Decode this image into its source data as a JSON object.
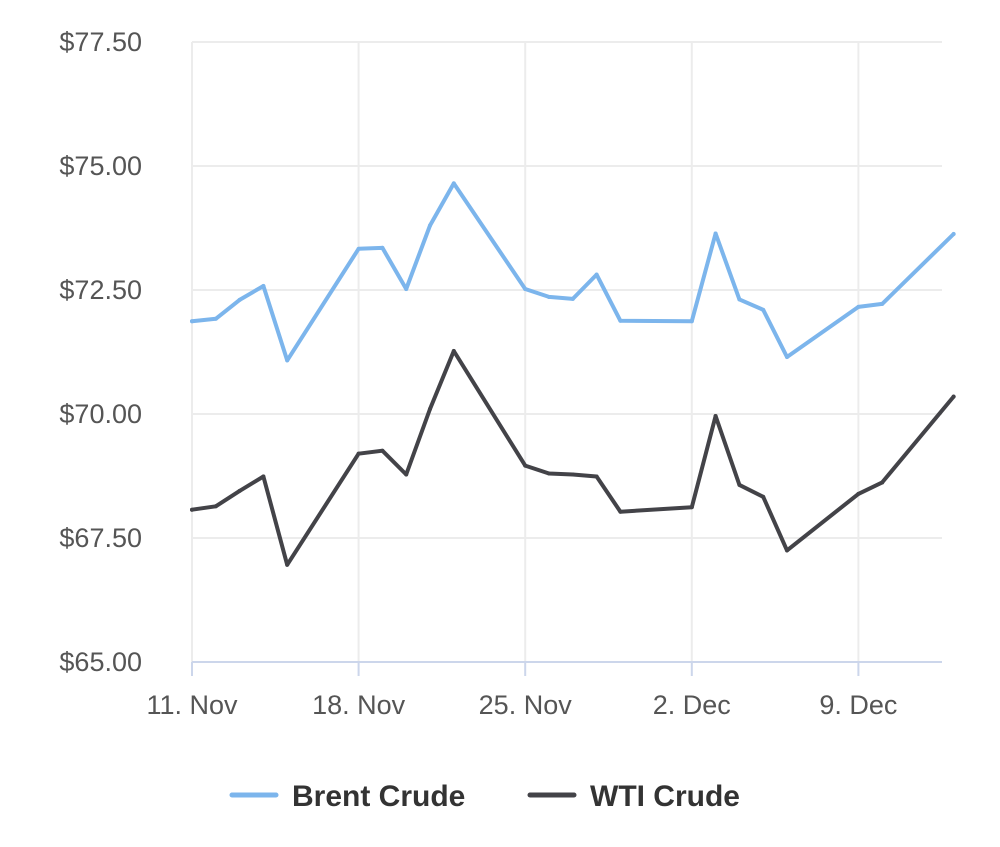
{
  "chart_data": {
    "type": "line",
    "title": "",
    "xlabel": "",
    "ylabel": "",
    "ylim": [
      65,
      77.5
    ],
    "y_ticks": [
      "$65.00",
      "$67.50",
      "$70.00",
      "$72.50",
      "$75.00",
      "$77.50"
    ],
    "y_tick_values": [
      65,
      67.5,
      70,
      72.5,
      75,
      77.5
    ],
    "x_ticks": [
      "11. Nov",
      "18. Nov",
      "25. Nov",
      "2. Dec",
      "9. Dec"
    ],
    "x_tick_dates": [
      "2024-11-11",
      "2024-11-18",
      "2024-11-25",
      "2024-12-02",
      "2024-12-09"
    ],
    "x_range": [
      "2024-11-11",
      "2024-12-14"
    ],
    "grid": true,
    "legend": {
      "placement": "bottom-center"
    },
    "series": [
      {
        "name": "Brent Crude",
        "color": "#7cb5ec",
        "points": [
          [
            "2024-11-11",
            71.87
          ],
          [
            "2024-11-12",
            71.92
          ],
          [
            "2024-11-13",
            72.3
          ],
          [
            "2024-11-14",
            72.58
          ],
          [
            "2024-11-15",
            71.08
          ],
          [
            "2024-11-18",
            73.33
          ],
          [
            "2024-11-19",
            73.35
          ],
          [
            "2024-11-20",
            72.52
          ],
          [
            "2024-11-21",
            73.8
          ],
          [
            "2024-11-22",
            74.65
          ],
          [
            "2024-11-25",
            72.52
          ],
          [
            "2024-11-26",
            72.36
          ],
          [
            "2024-11-27",
            72.32
          ],
          [
            "2024-11-28",
            72.81
          ],
          [
            "2024-11-29",
            71.88
          ],
          [
            "2024-12-02",
            71.87
          ],
          [
            "2024-12-03",
            73.64
          ],
          [
            "2024-12-04",
            72.31
          ],
          [
            "2024-12-05",
            72.1
          ],
          [
            "2024-12-06",
            71.15
          ],
          [
            "2024-12-09",
            72.16
          ],
          [
            "2024-12-10",
            72.22
          ],
          [
            "2024-12-13",
            73.63
          ]
        ]
      },
      {
        "name": "WTI Crude",
        "color": "#434348",
        "points": [
          [
            "2024-11-11",
            68.07
          ],
          [
            "2024-11-12",
            68.14
          ],
          [
            "2024-11-13",
            68.45
          ],
          [
            "2024-11-14",
            68.74
          ],
          [
            "2024-11-15",
            66.96
          ],
          [
            "2024-11-18",
            69.2
          ],
          [
            "2024-11-19",
            69.26
          ],
          [
            "2024-11-20",
            68.78
          ],
          [
            "2024-11-21",
            70.1
          ],
          [
            "2024-11-22",
            71.27
          ],
          [
            "2024-11-25",
            68.96
          ],
          [
            "2024-11-26",
            68.8
          ],
          [
            "2024-11-27",
            68.78
          ],
          [
            "2024-11-28",
            68.74
          ],
          [
            "2024-11-29",
            68.03
          ],
          [
            "2024-12-02",
            68.12
          ],
          [
            "2024-12-03",
            69.96
          ],
          [
            "2024-12-04",
            68.57
          ],
          [
            "2024-12-05",
            68.33
          ],
          [
            "2024-12-06",
            67.25
          ],
          [
            "2024-12-09",
            68.39
          ],
          [
            "2024-12-10",
            68.62
          ],
          [
            "2024-12-13",
            70.35
          ]
        ]
      }
    ]
  }
}
